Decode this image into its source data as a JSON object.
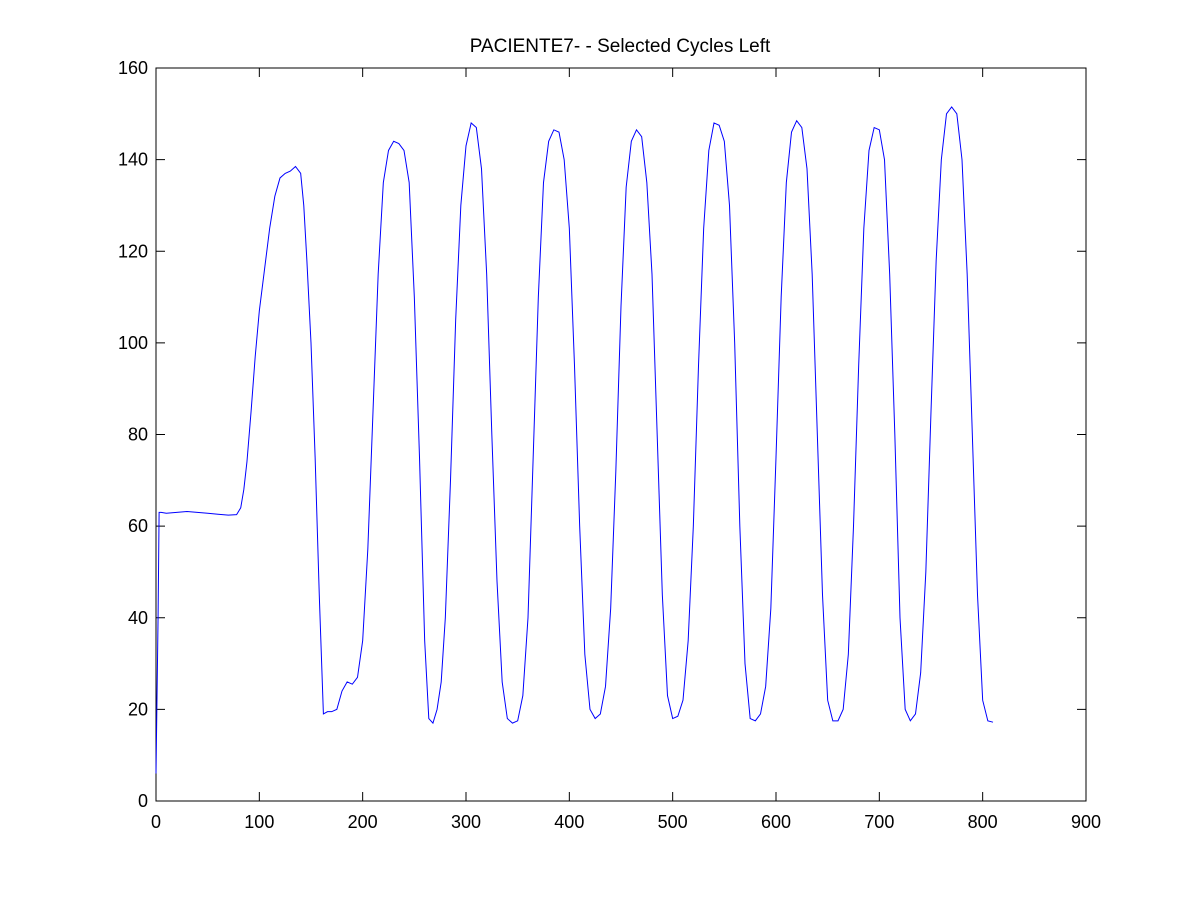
{
  "chart_data": {
    "type": "line",
    "title": "PACIENTE7- - Selected Cycles Left",
    "xlabel": "",
    "ylabel": "",
    "xlim": [
      0,
      900
    ],
    "ylim": [
      0,
      160
    ],
    "xticks": [
      0,
      100,
      200,
      300,
      400,
      500,
      600,
      700,
      800,
      900
    ],
    "yticks": [
      0,
      20,
      40,
      60,
      80,
      100,
      120,
      140,
      160
    ],
    "grid": false,
    "colors": {
      "line": "#0000ff",
      "axes": "#000000",
      "background": "#ffffff"
    },
    "series": [
      {
        "x": [
          0,
          2,
          3,
          5,
          10,
          20,
          30,
          40,
          50,
          60,
          70,
          78,
          82,
          85,
          88,
          92,
          96,
          100,
          105,
          110,
          115,
          120,
          125,
          130,
          135,
          140,
          143,
          146,
          150,
          154,
          158,
          162,
          166,
          170,
          175,
          180,
          185,
          190,
          195,
          200,
          205,
          210,
          215,
          220,
          225,
          230,
          235,
          240,
          245,
          250,
          255,
          260,
          264,
          268,
          272,
          276,
          280,
          285,
          290,
          295,
          300,
          305,
          310,
          315,
          320,
          325,
          330,
          335,
          340,
          345,
          350,
          355,
          360,
          365,
          370,
          375,
          380,
          385,
          390,
          395,
          400,
          405,
          410,
          415,
          420,
          425,
          430,
          435,
          440,
          445,
          450,
          455,
          460,
          465,
          470,
          475,
          480,
          485,
          490,
          495,
          500,
          505,
          510,
          515,
          520,
          525,
          530,
          535,
          540,
          545,
          550,
          555,
          560,
          565,
          570,
          575,
          580,
          585,
          590,
          595,
          600,
          605,
          610,
          615,
          620,
          625,
          630,
          635,
          640,
          645,
          650,
          655,
          660,
          665,
          670,
          675,
          680,
          685,
          690,
          695,
          700,
          705,
          710,
          715,
          720,
          725,
          730,
          735,
          740,
          745,
          750,
          755,
          760,
          765,
          770,
          775,
          780,
          785,
          790,
          795,
          800,
          805,
          810
        ],
        "y": [
          6,
          40,
          63,
          63,
          62.8,
          63,
          63.2,
          63,
          62.8,
          62.6,
          62.4,
          62.5,
          64,
          68,
          74,
          85,
          97,
          107,
          116,
          125,
          132,
          136,
          137,
          137.5,
          138.5,
          137,
          130,
          118,
          100,
          75,
          45,
          19,
          19.5,
          19.5,
          20,
          24,
          26,
          25.5,
          27,
          35,
          55,
          85,
          115,
          135,
          142,
          144,
          143.5,
          142,
          135,
          110,
          75,
          35,
          18,
          17,
          20,
          26,
          40,
          70,
          105,
          130,
          143,
          148,
          147,
          138,
          115,
          80,
          48,
          26,
          18,
          17,
          17.5,
          23,
          40,
          75,
          110,
          135,
          144,
          146.5,
          146,
          140,
          125,
          95,
          60,
          32,
          20,
          18,
          19,
          25,
          42,
          72,
          108,
          134,
          144,
          146.5,
          145,
          135,
          115,
          80,
          45,
          23,
          18,
          18.5,
          22,
          35,
          60,
          95,
          125,
          142,
          148,
          147.5,
          144,
          130,
          100,
          60,
          30,
          18,
          17.5,
          19,
          25,
          42,
          75,
          110,
          135,
          146,
          148.5,
          147,
          138,
          115,
          80,
          45,
          22,
          17.5,
          17.5,
          20,
          32,
          60,
          95,
          125,
          142,
          147,
          146.5,
          140,
          115,
          80,
          40,
          20,
          17.5,
          19,
          28,
          50,
          85,
          118,
          140,
          150,
          151.5,
          150,
          140,
          115,
          80,
          45,
          22,
          17.5,
          17.2
        ]
      }
    ]
  }
}
